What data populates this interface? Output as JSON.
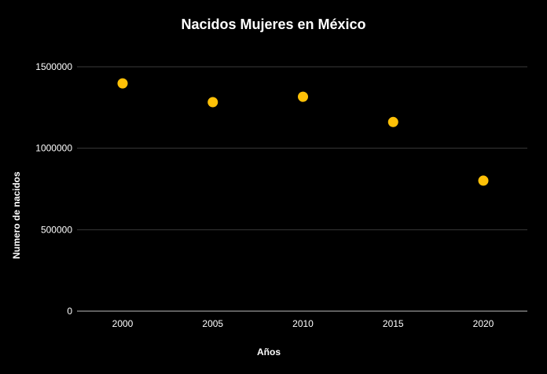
{
  "chart_data": {
    "type": "scatter",
    "title": "Nacidos Mujeres en México",
    "xlabel": "Años",
    "ylabel": "Numero de nacidos",
    "categories": [
      "2000",
      "2005",
      "2010",
      "2015",
      "2020"
    ],
    "series": [
      {
        "values": [
          1398000,
          1283000,
          1316000,
          1161000,
          801000
        ]
      }
    ],
    "yticks": [
      0,
      500000,
      1000000,
      1500000
    ],
    "ytick_labels": [
      "0",
      "500000",
      "1000000",
      "1500000"
    ],
    "ylim": [
      0,
      1500000
    ],
    "grid": true,
    "legend": "none",
    "colors": {
      "background": "#000000",
      "marker": "#FFC107",
      "text": "#ffffff",
      "grid": "#3a3a3a"
    }
  }
}
